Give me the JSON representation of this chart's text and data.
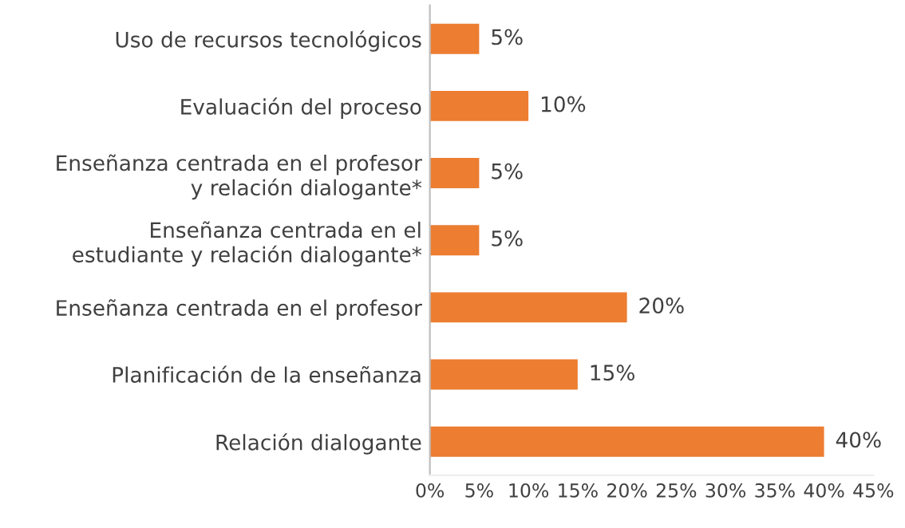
{
  "chart_data": {
    "type": "bar",
    "orientation": "horizontal",
    "categories": [
      "Uso de recursos tecnológicos",
      "Evaluación del proceso",
      "Enseñanza centrada en el profesor\ny relación dialogante*",
      "Enseñanza centrada en el\nestudiante y relación dialogante*",
      "Enseñanza centrada en el profesor",
      "Planificación de la enseñanza",
      "Relación dialogante"
    ],
    "values": [
      5,
      10,
      5,
      5,
      20,
      15,
      40
    ],
    "value_labels": [
      "5%",
      "10%",
      "5%",
      "5%",
      "20%",
      "15%",
      "40%"
    ],
    "color": "#ed7d31",
    "xlim": [
      0,
      45
    ],
    "xticks": [
      {
        "value": 0,
        "label": "0%"
      },
      {
        "value": 5,
        "label": "5%"
      },
      {
        "value": 10,
        "label": "10%"
      },
      {
        "value": 15,
        "label": "15%"
      },
      {
        "value": 20,
        "label": "20%"
      },
      {
        "value": 25,
        "label": "25%"
      },
      {
        "value": 30,
        "label": "30%"
      },
      {
        "value": 35,
        "label": "35%"
      },
      {
        "value": 40,
        "label": "40%"
      },
      {
        "value": 45,
        "label": "45%"
      }
    ],
    "grid": false,
    "legend": false
  }
}
